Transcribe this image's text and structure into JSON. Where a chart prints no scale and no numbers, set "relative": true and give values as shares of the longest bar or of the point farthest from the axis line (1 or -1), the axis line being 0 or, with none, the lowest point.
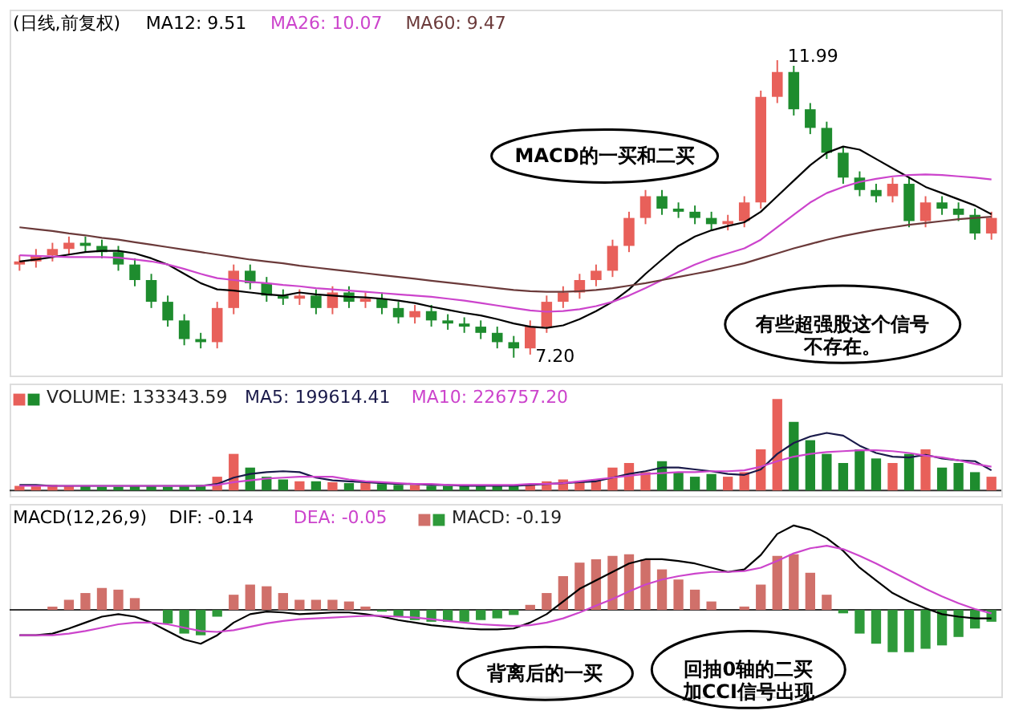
{
  "chart_data": [
    {
      "type": "candlestick",
      "title": "(日线,前复权)",
      "categories": [
        null,
        null,
        null,
        null,
        null,
        null,
        null,
        null,
        null,
        null,
        null,
        null,
        null,
        null,
        null,
        null,
        null,
        null,
        null,
        null,
        null,
        null,
        null,
        null,
        null,
        null,
        null,
        null,
        null,
        null,
        null,
        null,
        null,
        null,
        null,
        null,
        null,
        null,
        null,
        null,
        null,
        null,
        null,
        null,
        null,
        null,
        null,
        null,
        null,
        null,
        null,
        null,
        null,
        null,
        null,
        null,
        null,
        null,
        null,
        null
      ],
      "ohlc": [
        [
          8.7,
          8.85,
          8.6,
          8.75
        ],
        [
          8.75,
          8.95,
          8.65,
          8.85
        ],
        [
          8.85,
          9.05,
          8.75,
          8.95
        ],
        [
          8.95,
          9.15,
          8.85,
          9.05
        ],
        [
          9.05,
          9.15,
          8.9,
          9.0
        ],
        [
          9.0,
          9.1,
          8.8,
          8.9
        ],
        [
          8.9,
          9.0,
          8.6,
          8.7
        ],
        [
          8.7,
          8.8,
          8.35,
          8.45
        ],
        [
          8.45,
          8.55,
          8.0,
          8.1
        ],
        [
          8.1,
          8.2,
          7.7,
          7.8
        ],
        [
          7.8,
          7.9,
          7.4,
          7.5
        ],
        [
          7.5,
          7.6,
          7.35,
          7.45
        ],
        [
          7.45,
          8.1,
          7.35,
          8.0
        ],
        [
          8.0,
          8.7,
          7.9,
          8.6
        ],
        [
          8.6,
          8.7,
          8.3,
          8.4
        ],
        [
          8.4,
          8.5,
          8.1,
          8.2
        ],
        [
          8.2,
          8.3,
          8.05,
          8.15
        ],
        [
          8.15,
          8.3,
          8.05,
          8.2
        ],
        [
          8.2,
          8.3,
          7.9,
          8.0
        ],
        [
          8.0,
          8.35,
          7.9,
          8.25
        ],
        [
          8.25,
          8.35,
          8.0,
          8.1
        ],
        [
          8.1,
          8.25,
          8.0,
          8.15
        ],
        [
          8.15,
          8.25,
          7.9,
          8.0
        ],
        [
          8.0,
          8.1,
          7.75,
          7.85
        ],
        [
          7.85,
          8.05,
          7.75,
          7.95
        ],
        [
          7.95,
          8.05,
          7.7,
          7.8
        ],
        [
          7.8,
          7.9,
          7.65,
          7.75
        ],
        [
          7.75,
          7.85,
          7.6,
          7.7
        ],
        [
          7.7,
          7.8,
          7.5,
          7.6
        ],
        [
          7.6,
          7.7,
          7.35,
          7.45
        ],
        [
          7.45,
          7.55,
          7.2,
          7.35
        ],
        [
          7.35,
          7.8,
          7.25,
          7.7
        ],
        [
          7.7,
          8.2,
          7.6,
          8.1
        ],
        [
          8.1,
          8.35,
          8.0,
          8.25
        ],
        [
          8.25,
          8.55,
          8.15,
          8.45
        ],
        [
          8.45,
          8.7,
          8.35,
          8.6
        ],
        [
          8.6,
          9.1,
          8.5,
          9.0
        ],
        [
          9.0,
          9.55,
          8.9,
          9.45
        ],
        [
          9.45,
          9.9,
          9.35,
          9.8
        ],
        [
          9.8,
          9.9,
          9.5,
          9.6
        ],
        [
          9.6,
          9.7,
          9.45,
          9.55
        ],
        [
          9.55,
          9.65,
          9.35,
          9.45
        ],
        [
          9.45,
          9.55,
          9.25,
          9.35
        ],
        [
          9.35,
          9.5,
          9.25,
          9.4
        ],
        [
          9.4,
          9.8,
          9.3,
          9.7
        ],
        [
          9.7,
          11.5,
          9.6,
          11.4
        ],
        [
          11.4,
          11.99,
          11.3,
          11.8
        ],
        [
          11.8,
          11.9,
          11.1,
          11.2
        ],
        [
          11.2,
          11.3,
          10.8,
          10.9
        ],
        [
          10.9,
          11.0,
          10.4,
          10.5
        ],
        [
          10.5,
          10.6,
          10.0,
          10.1
        ],
        [
          10.1,
          10.2,
          9.8,
          9.9
        ],
        [
          9.9,
          10.0,
          9.7,
          9.8
        ],
        [
          9.8,
          10.1,
          9.7,
          10.0
        ],
        [
          10.0,
          10.1,
          9.3,
          9.4
        ],
        [
          9.4,
          9.8,
          9.3,
          9.7
        ],
        [
          9.7,
          9.8,
          9.5,
          9.6
        ],
        [
          9.6,
          9.7,
          9.4,
          9.5
        ],
        [
          9.5,
          9.6,
          9.1,
          9.2
        ],
        [
          9.2,
          9.55,
          9.1,
          9.45
        ]
      ],
      "colors": [
        "#e8605a",
        "#e8605a",
        "#e8605a",
        "#e8605a",
        "#1e8c2e",
        "#1e8c2e",
        "#1e8c2e",
        "#1e8c2e",
        "#1e8c2e",
        "#1e8c2e",
        "#1e8c2e",
        "#1e8c2e",
        "#e8605a",
        "#e8605a",
        "#1e8c2e",
        "#1e8c2e",
        "#1e8c2e",
        "#e8605a",
        "#1e8c2e",
        "#e8605a",
        "#1e8c2e",
        "#e8605a",
        "#1e8c2e",
        "#1e8c2e",
        "#e8605a",
        "#1e8c2e",
        "#1e8c2e",
        "#1e8c2e",
        "#1e8c2e",
        "#1e8c2e",
        "#1e8c2e",
        "#e8605a",
        "#e8605a",
        "#e8605a",
        "#e8605a",
        "#e8605a",
        "#e8605a",
        "#e8605a",
        "#e8605a",
        "#1e8c2e",
        "#1e8c2e",
        "#1e8c2e",
        "#1e8c2e",
        "#e8605a",
        "#e8605a",
        "#e8605a",
        "#e8605a",
        "#1e8c2e",
        "#1e8c2e",
        "#1e8c2e",
        "#1e8c2e",
        "#1e8c2e",
        "#1e8c2e",
        "#e8605a",
        "#1e8c2e",
        "#e8605a",
        "#1e8c2e",
        "#1e8c2e",
        "#1e8c2e",
        "#e8605a"
      ],
      "series": [
        {
          "type": "line",
          "name": "MA12: 9.51",
          "color": "#000000",
          "values": [
            8.75,
            8.78,
            8.82,
            8.86,
            8.9,
            8.92,
            8.92,
            8.88,
            8.8,
            8.7,
            8.55,
            8.4,
            8.3,
            8.28,
            8.25,
            8.22,
            8.2,
            8.25,
            8.22,
            8.2,
            8.18,
            8.17,
            8.15,
            8.12,
            8.08,
            8.02,
            7.97,
            7.92,
            7.88,
            7.82,
            7.75,
            7.7,
            7.68,
            7.72,
            7.82,
            7.95,
            8.1,
            8.3,
            8.55,
            8.78,
            9.0,
            9.15,
            9.25,
            9.32,
            9.38,
            9.55,
            9.8,
            10.05,
            10.3,
            10.5,
            10.6,
            10.55,
            10.4,
            10.25,
            10.1,
            9.95,
            9.85,
            9.75,
            9.65,
            9.51
          ]
        },
        {
          "type": "line",
          "name": "MA26: 10.07",
          "color": "#cc44cc",
          "values": [
            8.85,
            8.84,
            8.83,
            8.82,
            8.82,
            8.82,
            8.81,
            8.78,
            8.75,
            8.7,
            8.63,
            8.55,
            8.48,
            8.45,
            8.42,
            8.4,
            8.37,
            8.35,
            8.32,
            8.3,
            8.28,
            8.26,
            8.24,
            8.22,
            8.2,
            8.18,
            8.15,
            8.12,
            8.08,
            8.04,
            8.0,
            7.96,
            7.94,
            7.95,
            7.98,
            8.03,
            8.1,
            8.2,
            8.32,
            8.45,
            8.58,
            8.7,
            8.8,
            8.88,
            8.96,
            9.1,
            9.3,
            9.5,
            9.7,
            9.85,
            9.95,
            10.03,
            10.08,
            10.12,
            10.14,
            10.15,
            10.14,
            10.12,
            10.1,
            10.07
          ]
        },
        {
          "type": "line",
          "name": "MA60: 9.47",
          "color": "#6b3a3a",
          "values": [
            9.3,
            9.27,
            9.24,
            9.2,
            9.17,
            9.13,
            9.1,
            9.06,
            9.02,
            8.98,
            8.94,
            8.9,
            8.86,
            8.82,
            8.78,
            8.75,
            8.72,
            8.68,
            8.65,
            8.62,
            8.59,
            8.56,
            8.53,
            8.5,
            8.47,
            8.44,
            8.41,
            8.38,
            8.35,
            8.32,
            8.29,
            8.27,
            8.26,
            8.26,
            8.27,
            8.29,
            8.32,
            8.36,
            8.4,
            8.45,
            8.5,
            8.55,
            8.6,
            8.66,
            8.72,
            8.8,
            8.88,
            8.96,
            9.03,
            9.1,
            9.16,
            9.21,
            9.26,
            9.3,
            9.34,
            9.37,
            9.4,
            9.43,
            9.45,
            9.47
          ]
        }
      ],
      "annotations": [
        "11.99",
        "7.20",
        "MACD的一买和二买",
        "有些超强股这个信号不存在。"
      ]
    },
    {
      "type": "bar",
      "relative": true,
      "categories": [
        null,
        null,
        null,
        null,
        null,
        null,
        null,
        null,
        null,
        null,
        null,
        null,
        null,
        null,
        null,
        null,
        null,
        null,
        null,
        null,
        null,
        null,
        null,
        null,
        null,
        null,
        null,
        null,
        null,
        null,
        null,
        null,
        null,
        null,
        null,
        null,
        null,
        null,
        null,
        null,
        null,
        null,
        null,
        null,
        null,
        null,
        null,
        null,
        null,
        null,
        null,
        null,
        null,
        null,
        null,
        null,
        null,
        null,
        null,
        null
      ],
      "series": [
        {
          "type": "bar",
          "name": "VOLUME: 133343.59",
          "colors": [
            "#e8605a",
            "#e8605a",
            "#e8605a",
            "#e8605a",
            "#1e8c2e",
            "#1e8c2e",
            "#1e8c2e",
            "#1e8c2e",
            "#1e8c2e",
            "#1e8c2e",
            "#1e8c2e",
            "#1e8c2e",
            "#e8605a",
            "#e8605a",
            "#1e8c2e",
            "#1e8c2e",
            "#1e8c2e",
            "#e8605a",
            "#1e8c2e",
            "#e8605a",
            "#1e8c2e",
            "#e8605a",
            "#1e8c2e",
            "#1e8c2e",
            "#e8605a",
            "#1e8c2e",
            "#1e8c2e",
            "#1e8c2e",
            "#1e8c2e",
            "#1e8c2e",
            "#1e8c2e",
            "#e8605a",
            "#e8605a",
            "#e8605a",
            "#e8605a",
            "#e8605a",
            "#e8605a",
            "#e8605a",
            "#e8605a",
            "#1e8c2e",
            "#1e8c2e",
            "#1e8c2e",
            "#1e8c2e",
            "#e8605a",
            "#e8605a",
            "#e8605a",
            "#e8605a",
            "#1e8c2e",
            "#1e8c2e",
            "#1e8c2e",
            "#1e8c2e",
            "#1e8c2e",
            "#1e8c2e",
            "#e8605a",
            "#1e8c2e",
            "#e8605a",
            "#1e8c2e",
            "#1e8c2e",
            "#1e8c2e",
            "#e8605a"
          ],
          "values": [
            0.05,
            0.05,
            0.06,
            0.05,
            0.05,
            0.04,
            0.04,
            0.05,
            0.05,
            0.04,
            0.05,
            0.06,
            0.15,
            0.4,
            0.25,
            0.15,
            0.12,
            0.1,
            0.1,
            0.09,
            0.08,
            0.08,
            0.07,
            0.06,
            0.06,
            0.05,
            0.05,
            0.05,
            0.05,
            0.05,
            0.06,
            0.07,
            0.1,
            0.12,
            0.1,
            0.12,
            0.25,
            0.3,
            0.2,
            0.32,
            0.2,
            0.15,
            0.18,
            0.15,
            0.2,
            0.45,
            1.0,
            0.75,
            0.55,
            0.4,
            0.3,
            0.45,
            0.35,
            0.3,
            0.4,
            0.45,
            0.25,
            0.3,
            0.2,
            0.15
          ]
        },
        {
          "type": "line",
          "name": "MA5: 199614.41",
          "color": "#1a1a4a",
          "values": [
            0.06,
            0.06,
            0.05,
            0.05,
            0.05,
            0.05,
            0.05,
            0.05,
            0.05,
            0.05,
            0.05,
            0.05,
            0.07,
            0.14,
            0.18,
            0.2,
            0.21,
            0.2,
            0.14,
            0.11,
            0.1,
            0.09,
            0.08,
            0.07,
            0.07,
            0.06,
            0.06,
            0.05,
            0.05,
            0.05,
            0.05,
            0.06,
            0.07,
            0.08,
            0.09,
            0.1,
            0.14,
            0.18,
            0.21,
            0.25,
            0.25,
            0.23,
            0.21,
            0.18,
            0.17,
            0.23,
            0.4,
            0.52,
            0.59,
            0.63,
            0.6,
            0.49,
            0.41,
            0.37,
            0.36,
            0.39,
            0.35,
            0.33,
            0.32,
            0.22
          ]
        },
        {
          "type": "line",
          "name": "MA10: 226757.20",
          "color": "#cc44cc",
          "values": [
            0.05,
            0.05,
            0.05,
            0.05,
            0.05,
            0.05,
            0.05,
            0.05,
            0.05,
            0.05,
            0.05,
            0.05,
            0.06,
            0.09,
            0.11,
            0.13,
            0.14,
            0.15,
            0.15,
            0.15,
            0.12,
            0.1,
            0.09,
            0.08,
            0.07,
            0.07,
            0.06,
            0.06,
            0.06,
            0.06,
            0.06,
            0.07,
            0.07,
            0.08,
            0.1,
            0.12,
            0.14,
            0.16,
            0.18,
            0.19,
            0.2,
            0.2,
            0.21,
            0.21,
            0.22,
            0.26,
            0.32,
            0.37,
            0.4,
            0.42,
            0.43,
            0.44,
            0.44,
            0.43,
            0.41,
            0.38,
            0.36,
            0.33,
            0.29,
            0.26
          ]
        }
      ]
    },
    {
      "type": "line",
      "relative": true,
      "title": "MACD(12,26,9)",
      "categories": [
        null,
        null,
        null,
        null,
        null,
        null,
        null,
        null,
        null,
        null,
        null,
        null,
        null,
        null,
        null,
        null,
        null,
        null,
        null,
        null,
        null,
        null,
        null,
        null,
        null,
        null,
        null,
        null,
        null,
        null,
        null,
        null,
        null,
        null,
        null,
        null,
        null,
        null,
        null,
        null,
        null,
        null,
        null,
        null,
        null,
        null,
        null,
        null,
        null,
        null,
        null,
        null,
        null,
        null,
        null,
        null,
        null,
        null,
        null,
        null
      ],
      "series": [
        {
          "type": "line",
          "name": "DIF: -0.14",
          "color": "#000000",
          "values": [
            -0.3,
            -0.3,
            -0.28,
            -0.22,
            -0.15,
            -0.08,
            -0.05,
            -0.08,
            -0.15,
            -0.25,
            -0.35,
            -0.4,
            -0.3,
            -0.15,
            -0.05,
            -0.02,
            -0.03,
            -0.05,
            -0.04,
            -0.03,
            -0.03,
            -0.05,
            -0.08,
            -0.12,
            -0.15,
            -0.18,
            -0.2,
            -0.22,
            -0.23,
            -0.23,
            -0.22,
            -0.15,
            -0.05,
            0.1,
            0.25,
            0.35,
            0.45,
            0.55,
            0.6,
            0.6,
            0.58,
            0.55,
            0.5,
            0.45,
            0.48,
            0.65,
            0.9,
            1.0,
            0.95,
            0.85,
            0.7,
            0.5,
            0.35,
            0.2,
            0.1,
            0.02,
            -0.05,
            -0.08,
            -0.1,
            -0.1
          ]
        },
        {
          "type": "line",
          "name": "DEA: -0.05",
          "color": "#cc44cc",
          "values": [
            -0.3,
            -0.3,
            -0.3,
            -0.28,
            -0.25,
            -0.21,
            -0.17,
            -0.15,
            -0.15,
            -0.17,
            -0.21,
            -0.25,
            -0.26,
            -0.24,
            -0.2,
            -0.16,
            -0.13,
            -0.11,
            -0.1,
            -0.09,
            -0.08,
            -0.07,
            -0.07,
            -0.08,
            -0.09,
            -0.11,
            -0.13,
            -0.15,
            -0.17,
            -0.18,
            -0.19,
            -0.18,
            -0.15,
            -0.1,
            -0.03,
            0.05,
            0.13,
            0.22,
            0.3,
            0.36,
            0.4,
            0.43,
            0.45,
            0.45,
            0.46,
            0.5,
            0.58,
            0.67,
            0.73,
            0.76,
            0.72,
            0.64,
            0.55,
            0.45,
            0.35,
            0.25,
            0.16,
            0.08,
            0.01,
            -0.04
          ]
        },
        {
          "type": "bar",
          "name": "MACD: -0.19",
          "colors": [
            "#d0706a",
            "#d0706a",
            "#d0706a",
            "#d0706a",
            "#d0706a",
            "#d0706a",
            "#d0706a",
            "#d0706a",
            "#d0706a",
            "#2e9a3a",
            "#2e9a3a",
            "#2e9a3a",
            "#2e9a3a",
            "#d0706a",
            "#d0706a",
            "#d0706a",
            "#d0706a",
            "#d0706a",
            "#d0706a",
            "#d0706a",
            "#d0706a",
            "#d0706a",
            "#2e9a3a",
            "#2e9a3a",
            "#2e9a3a",
            "#2e9a3a",
            "#2e9a3a",
            "#2e9a3a",
            "#2e9a3a",
            "#2e9a3a",
            "#2e9a3a",
            "#d0706a",
            "#d0706a",
            "#d0706a",
            "#d0706a",
            "#d0706a",
            "#d0706a",
            "#d0706a",
            "#d0706a",
            "#d0706a",
            "#d0706a",
            "#d0706a",
            "#d0706a",
            "#d0706a",
            "#d0706a",
            "#d0706a",
            "#d0706a",
            "#d0706a",
            "#d0706a",
            "#d0706a",
            "#2e9a3a",
            "#2e9a3a",
            "#2e9a3a",
            "#2e9a3a",
            "#2e9a3a",
            "#2e9a3a",
            "#2e9a3a",
            "#2e9a3a",
            "#2e9a3a",
            "#2e9a3a"
          ],
          "values": [
            0,
            0,
            0.04,
            0.12,
            0.2,
            0.26,
            0.24,
            0.14,
            0,
            -0.16,
            -0.28,
            -0.3,
            -0.08,
            0.18,
            0.3,
            0.28,
            0.2,
            0.12,
            0.12,
            0.12,
            0.1,
            0.04,
            -0.02,
            -0.08,
            -0.12,
            -0.14,
            -0.14,
            -0.14,
            -0.12,
            -0.1,
            -0.06,
            0.06,
            0.2,
            0.4,
            0.56,
            0.6,
            0.64,
            0.66,
            0.6,
            0.48,
            0.36,
            0.24,
            0.1,
            0.0,
            0.04,
            0.3,
            0.64,
            0.66,
            0.44,
            0.18,
            -0.04,
            -0.28,
            -0.4,
            -0.5,
            -0.5,
            -0.46,
            -0.42,
            -0.32,
            -0.22,
            -0.14
          ]
        }
      ],
      "annotations": [
        "背离后的一买",
        "回抽0轴的二买加CCI信号出现"
      ]
    }
  ]
}
